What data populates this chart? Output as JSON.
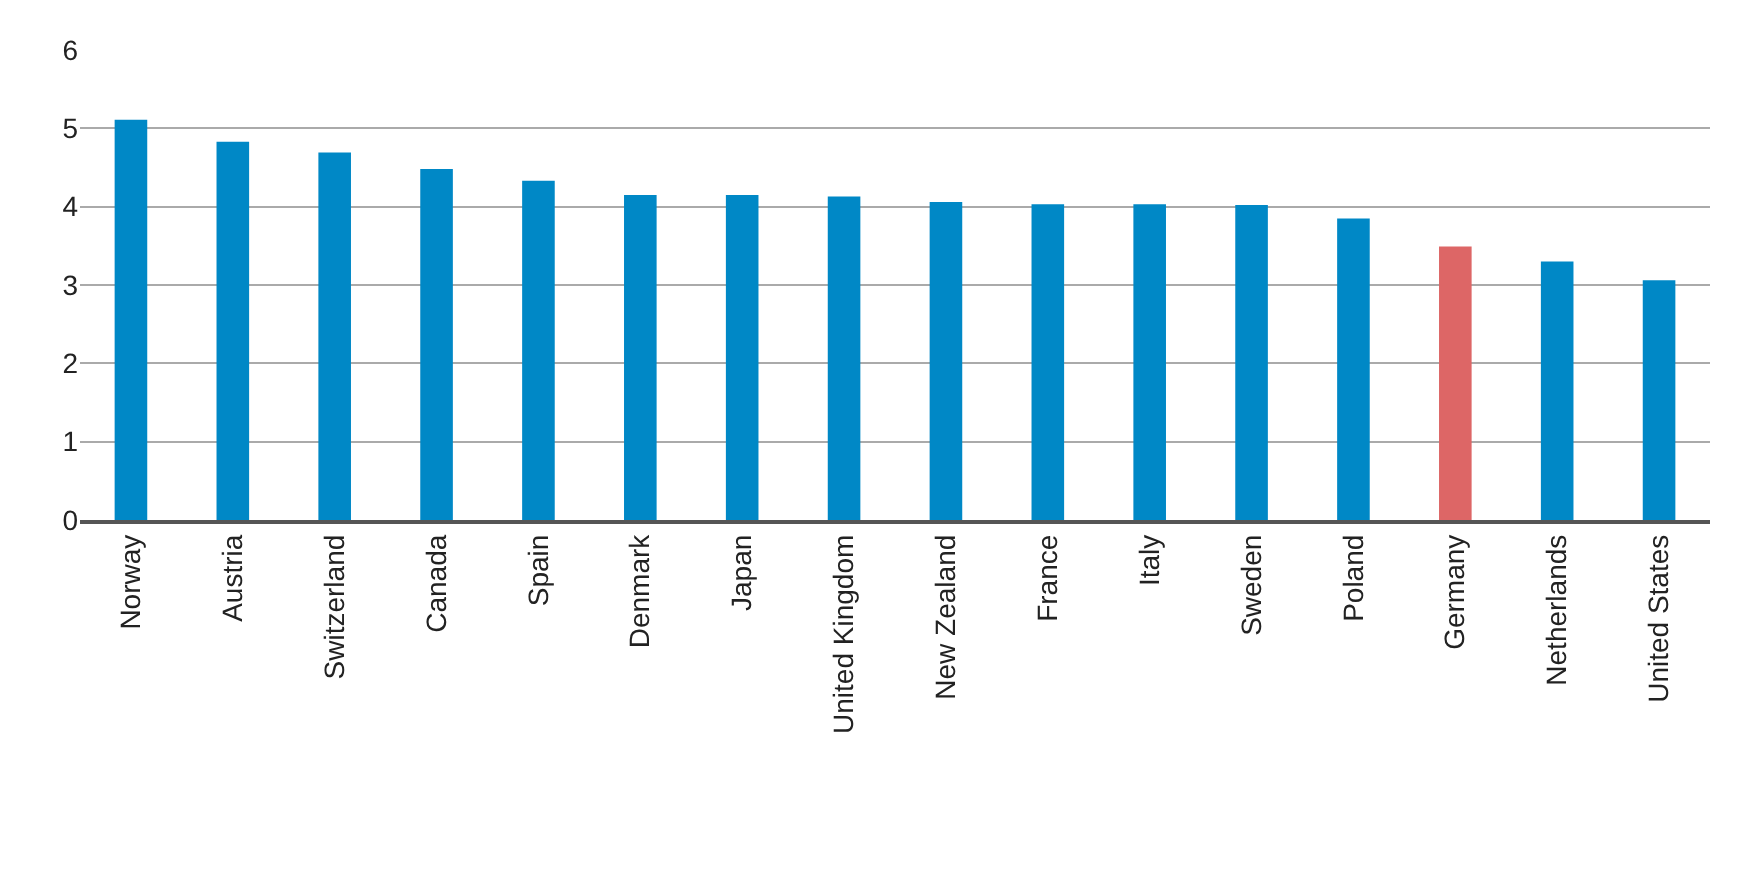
{
  "chart_data": {
    "type": "bar",
    "categories": [
      "Norway",
      "Austria",
      "Switzerland",
      "Canada",
      "Spain",
      "Denmark",
      "Japan",
      "United Kingdom",
      "New Zealand",
      "France",
      "Italy",
      "Sweden",
      "Poland",
      "Germany",
      "Netherlands",
      "United States"
    ],
    "values": [
      5.11,
      4.83,
      4.69,
      4.48,
      4.33,
      4.15,
      4.15,
      4.13,
      4.06,
      4.03,
      4.03,
      4.02,
      3.85,
      3.49,
      3.3,
      3.06
    ],
    "colors": [
      "#0088c6",
      "#0088c6",
      "#0088c6",
      "#0088c6",
      "#0088c6",
      "#0088c6",
      "#0088c6",
      "#0088c6",
      "#0088c6",
      "#0088c6",
      "#0088c6",
      "#0088c6",
      "#0088c6",
      "#dd6666",
      "#0088c6",
      "#0088c6"
    ],
    "ylim": [
      0,
      6
    ],
    "yticks": [
      0,
      1,
      2,
      3,
      4,
      5,
      6
    ],
    "grid": "y"
  }
}
